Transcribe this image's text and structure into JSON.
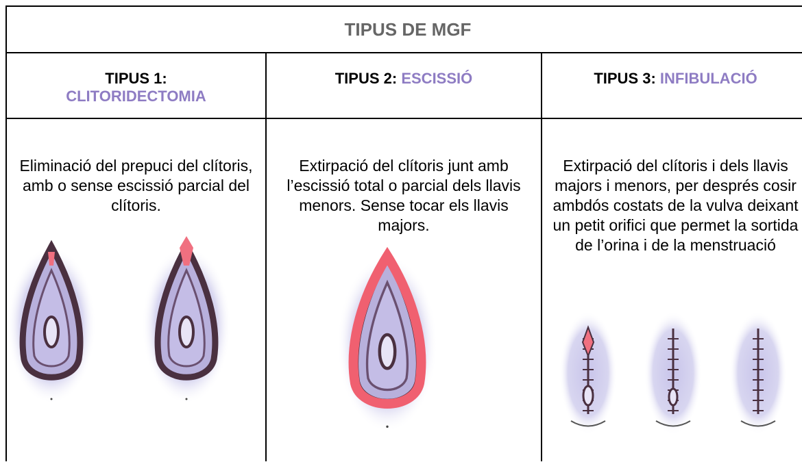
{
  "header": {
    "title": "TIPUS DE MGF"
  },
  "types": [
    {
      "label": "TIPUS 1:",
      "name": "CLITORIDECTOMIA",
      "description": "Eliminació del prepuci del clítoris, amb o sense escissió parcial del clítoris."
    },
    {
      "label": "TIPUS 2:",
      "name": "ESCISSIÓ",
      "description": "Extirpació del clítoris junt amb l’escissió total o parcial dels llavis menors. Sense tocar els llavis majors."
    },
    {
      "label": "TIPUS 3:",
      "name": "INFIBULACIÓ",
      "description": "Extirpació del clítoris i dels llavis majors i menors, per després cosir ambdós costats de la vulva deixant un petit orifici que permet la sortida de l’orina i de la menstruació"
    }
  ]
}
